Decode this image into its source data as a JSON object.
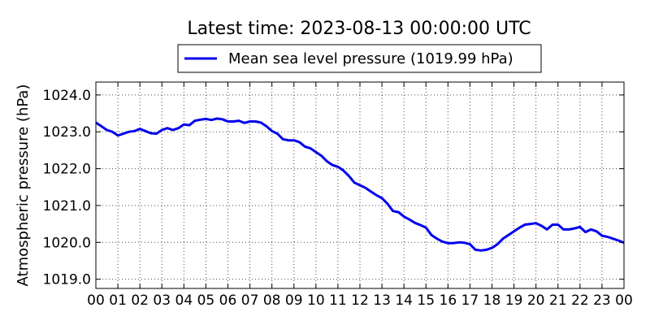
{
  "chart_data": {
    "type": "line",
    "title": "Latest time: 2023-08-13 00:00:00 UTC",
    "xlabel": "",
    "ylabel": "Atmospheric pressure (hPa)",
    "xlim": [
      0,
      24
    ],
    "ylim": [
      1018.75,
      1024.35
    ],
    "grid": true,
    "legend_position": "top-center",
    "x_ticks": [
      0,
      1,
      2,
      3,
      4,
      5,
      6,
      7,
      8,
      9,
      10,
      11,
      12,
      13,
      14,
      15,
      16,
      17,
      18,
      19,
      20,
      21,
      22,
      23,
      24
    ],
    "x_tick_labels": [
      "00",
      "01",
      "02",
      "03",
      "04",
      "05",
      "06",
      "07",
      "08",
      "09",
      "10",
      "11",
      "12",
      "13",
      "14",
      "15",
      "16",
      "17",
      "18",
      "19",
      "20",
      "21",
      "22",
      "23",
      "00"
    ],
    "y_ticks": [
      1019.0,
      1020.0,
      1021.0,
      1022.0,
      1023.0,
      1024.0
    ],
    "y_tick_labels": [
      "1019.0",
      "1020.0",
      "1021.0",
      "1022.0",
      "1023.0",
      "1024.0"
    ],
    "series": [
      {
        "name": "Mean sea level pressure (1019.99 hPa)",
        "color": "#0000ee",
        "x": [
          0,
          0.25,
          0.5,
          0.75,
          1.0,
          1.25,
          1.5,
          1.75,
          2.0,
          2.25,
          2.5,
          2.75,
          3.0,
          3.25,
          3.5,
          3.75,
          4.0,
          4.25,
          4.5,
          4.75,
          5.0,
          5.25,
          5.5,
          5.75,
          6.0,
          6.25,
          6.5,
          6.75,
          7.0,
          7.25,
          7.5,
          7.75,
          8.0,
          8.25,
          8.5,
          8.75,
          9.0,
          9.25,
          9.5,
          9.75,
          10.0,
          10.25,
          10.5,
          10.75,
          11.0,
          11.25,
          11.5,
          11.75,
          12.0,
          12.25,
          12.5,
          12.75,
          13.0,
          13.25,
          13.5,
          13.75,
          14.0,
          14.25,
          14.5,
          14.75,
          15.0,
          15.25,
          15.5,
          15.75,
          16.0,
          16.25,
          16.5,
          16.75,
          17.0,
          17.25,
          17.5,
          17.75,
          18.0,
          18.25,
          18.5,
          18.75,
          19.0,
          19.25,
          19.5,
          19.75,
          20.0,
          20.25,
          20.5,
          20.75,
          21.0,
          21.25,
          21.5,
          21.75,
          22.0,
          22.25,
          22.5,
          22.75,
          23.0,
          23.25,
          23.5,
          23.75,
          24.0
        ],
        "y": [
          1023.25,
          1023.15,
          1023.05,
          1023.0,
          1022.9,
          1022.95,
          1023.0,
          1023.02,
          1023.08,
          1023.02,
          1022.96,
          1022.95,
          1023.05,
          1023.1,
          1023.05,
          1023.1,
          1023.2,
          1023.18,
          1023.3,
          1023.33,
          1023.35,
          1023.32,
          1023.36,
          1023.34,
          1023.28,
          1023.28,
          1023.3,
          1023.24,
          1023.28,
          1023.28,
          1023.25,
          1023.15,
          1023.02,
          1022.95,
          1022.8,
          1022.77,
          1022.77,
          1022.72,
          1022.6,
          1022.55,
          1022.45,
          1022.35,
          1022.2,
          1022.1,
          1022.05,
          1021.95,
          1021.8,
          1021.62,
          1021.55,
          1021.48,
          1021.38,
          1021.28,
          1021.2,
          1021.05,
          1020.85,
          1020.82,
          1020.7,
          1020.62,
          1020.53,
          1020.47,
          1020.4,
          1020.2,
          1020.1,
          1020.02,
          1019.98,
          1019.98,
          1020.0,
          1019.99,
          1019.95,
          1019.8,
          1019.78,
          1019.8,
          1019.85,
          1019.95,
          1020.1,
          1020.2,
          1020.3,
          1020.4,
          1020.48,
          1020.5,
          1020.52,
          1020.45,
          1020.35,
          1020.48,
          1020.48,
          1020.35,
          1020.35,
          1020.38,
          1020.42,
          1020.28,
          1020.35,
          1020.3,
          1020.18,
          1020.15,
          1020.1,
          1020.05,
          1019.99
        ]
      }
    ]
  }
}
